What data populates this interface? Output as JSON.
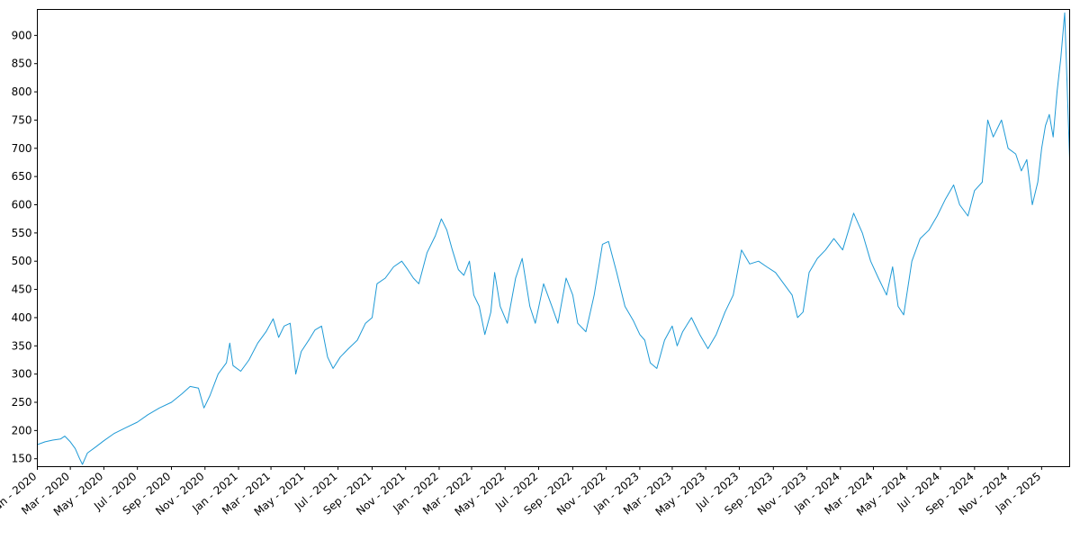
{
  "chart_data": {
    "type": "line",
    "title": "",
    "xlabel": "",
    "ylabel": "",
    "grid": false,
    "line_color": "#1f9ad6",
    "xlim": [
      "2020-01-01",
      "2025-02-21"
    ],
    "ylim": [
      136,
      946
    ],
    "y_ticks": [
      150,
      200,
      250,
      300,
      350,
      400,
      450,
      500,
      550,
      600,
      650,
      700,
      750,
      800,
      850,
      900
    ],
    "x_ticks": [
      {
        "date": "2020-01-01",
        "label": "Jan - 2020"
      },
      {
        "date": "2020-03-01",
        "label": "Mar - 2020"
      },
      {
        "date": "2020-05-01",
        "label": "May - 2020"
      },
      {
        "date": "2020-07-01",
        "label": "Jul - 2020"
      },
      {
        "date": "2020-09-01",
        "label": "Sep - 2020"
      },
      {
        "date": "2020-11-01",
        "label": "Nov - 2020"
      },
      {
        "date": "2021-01-01",
        "label": "Jan - 2021"
      },
      {
        "date": "2021-03-01",
        "label": "Mar - 2021"
      },
      {
        "date": "2021-05-01",
        "label": "May - 2021"
      },
      {
        "date": "2021-07-01",
        "label": "Jul - 2021"
      },
      {
        "date": "2021-09-01",
        "label": "Sep - 2021"
      },
      {
        "date": "2021-11-01",
        "label": "Nov - 2021"
      },
      {
        "date": "2022-01-01",
        "label": "Jan - 2022"
      },
      {
        "date": "2022-03-01",
        "label": "Mar - 2022"
      },
      {
        "date": "2022-05-01",
        "label": "May - 2022"
      },
      {
        "date": "2022-07-01",
        "label": "Jul - 2022"
      },
      {
        "date": "2022-09-01",
        "label": "Sep - 2022"
      },
      {
        "date": "2022-11-01",
        "label": "Nov - 2022"
      },
      {
        "date": "2023-01-01",
        "label": "Jan - 2023"
      },
      {
        "date": "2023-03-01",
        "label": "Mar - 2023"
      },
      {
        "date": "2023-05-01",
        "label": "May - 2023"
      },
      {
        "date": "2023-07-01",
        "label": "Jul - 2023"
      },
      {
        "date": "2023-09-01",
        "label": "Sep - 2023"
      },
      {
        "date": "2023-11-01",
        "label": "Nov - 2023"
      },
      {
        "date": "2024-01-01",
        "label": "Jan - 2024"
      },
      {
        "date": "2024-03-01",
        "label": "Mar - 2024"
      },
      {
        "date": "2024-05-01",
        "label": "May - 2024"
      },
      {
        "date": "2024-07-01",
        "label": "Jul - 2024"
      },
      {
        "date": "2024-09-01",
        "label": "Sep - 2024"
      },
      {
        "date": "2024-11-01",
        "label": "Nov - 2024"
      },
      {
        "date": "2025-01-01",
        "label": "Jan - 2025"
      }
    ],
    "series": [
      {
        "points": [
          [
            "2020-01-01",
            175
          ],
          [
            "2020-01-15",
            180
          ],
          [
            "2020-01-29",
            183
          ],
          [
            "2020-02-12",
            185
          ],
          [
            "2020-02-20",
            190
          ],
          [
            "2020-03-01",
            180
          ],
          [
            "2020-03-10",
            168
          ],
          [
            "2020-03-18",
            150
          ],
          [
            "2020-03-23",
            140
          ],
          [
            "2020-04-01",
            160
          ],
          [
            "2020-04-15",
            170
          ],
          [
            "2020-05-01",
            182
          ],
          [
            "2020-05-20",
            195
          ],
          [
            "2020-06-10",
            205
          ],
          [
            "2020-07-01",
            215
          ],
          [
            "2020-07-20",
            228
          ],
          [
            "2020-08-10",
            240
          ],
          [
            "2020-09-01",
            250
          ],
          [
            "2020-09-20",
            265
          ],
          [
            "2020-10-05",
            278
          ],
          [
            "2020-10-20",
            275
          ],
          [
            "2020-10-30",
            240
          ],
          [
            "2020-11-10",
            262
          ],
          [
            "2020-11-25",
            300
          ],
          [
            "2020-12-10",
            320
          ],
          [
            "2020-12-16",
            355
          ],
          [
            "2020-12-22",
            315
          ],
          [
            "2021-01-05",
            305
          ],
          [
            "2021-01-20",
            325
          ],
          [
            "2021-02-05",
            355
          ],
          [
            "2021-02-20",
            375
          ],
          [
            "2021-03-05",
            398
          ],
          [
            "2021-03-15",
            365
          ],
          [
            "2021-03-25",
            385
          ],
          [
            "2021-04-05",
            390
          ],
          [
            "2021-04-12",
            330
          ],
          [
            "2021-04-15",
            300
          ],
          [
            "2021-04-25",
            340
          ],
          [
            "2021-05-10",
            362
          ],
          [
            "2021-05-20",
            378
          ],
          [
            "2021-06-01",
            385
          ],
          [
            "2021-06-12",
            330
          ],
          [
            "2021-06-22",
            310
          ],
          [
            "2021-07-05",
            330
          ],
          [
            "2021-07-20",
            345
          ],
          [
            "2021-08-05",
            360
          ],
          [
            "2021-08-20",
            390
          ],
          [
            "2021-09-01",
            400
          ],
          [
            "2021-09-10",
            460
          ],
          [
            "2021-09-25",
            470
          ],
          [
            "2021-10-10",
            490
          ],
          [
            "2021-10-25",
            500
          ],
          [
            "2021-11-05",
            485
          ],
          [
            "2021-11-15",
            470
          ],
          [
            "2021-11-25",
            460
          ],
          [
            "2021-12-10",
            515
          ],
          [
            "2021-12-25",
            545
          ],
          [
            "2022-01-05",
            575
          ],
          [
            "2022-01-15",
            555
          ],
          [
            "2022-01-25",
            520
          ],
          [
            "2022-02-05",
            485
          ],
          [
            "2022-02-15",
            475
          ],
          [
            "2022-02-25",
            500
          ],
          [
            "2022-03-05",
            440
          ],
          [
            "2022-03-15",
            420
          ],
          [
            "2022-03-25",
            370
          ],
          [
            "2022-04-05",
            410
          ],
          [
            "2022-04-12",
            480
          ],
          [
            "2022-04-22",
            420
          ],
          [
            "2022-05-05",
            390
          ],
          [
            "2022-05-20",
            470
          ],
          [
            "2022-06-01",
            505
          ],
          [
            "2022-06-15",
            420
          ],
          [
            "2022-06-25",
            390
          ],
          [
            "2022-07-10",
            460
          ],
          [
            "2022-07-25",
            420
          ],
          [
            "2022-08-05",
            390
          ],
          [
            "2022-08-20",
            470
          ],
          [
            "2022-09-01",
            440
          ],
          [
            "2022-09-10",
            390
          ],
          [
            "2022-09-25",
            375
          ],
          [
            "2022-10-10",
            440
          ],
          [
            "2022-10-25",
            530
          ],
          [
            "2022-11-05",
            535
          ],
          [
            "2022-11-20",
            480
          ],
          [
            "2022-12-05",
            420
          ],
          [
            "2022-12-20",
            395
          ],
          [
            "2023-01-01",
            370
          ],
          [
            "2023-01-10",
            360
          ],
          [
            "2023-01-20",
            320
          ],
          [
            "2023-02-01",
            310
          ],
          [
            "2023-02-15",
            360
          ],
          [
            "2023-03-01",
            385
          ],
          [
            "2023-03-10",
            350
          ],
          [
            "2023-03-20",
            375
          ],
          [
            "2023-04-05",
            400
          ],
          [
            "2023-04-20",
            370
          ],
          [
            "2023-05-05",
            345
          ],
          [
            "2023-05-20",
            370
          ],
          [
            "2023-06-05",
            410
          ],
          [
            "2023-06-20",
            440
          ],
          [
            "2023-07-05",
            520
          ],
          [
            "2023-07-20",
            495
          ],
          [
            "2023-08-05",
            500
          ],
          [
            "2023-08-20",
            490
          ],
          [
            "2023-09-05",
            480
          ],
          [
            "2023-09-20",
            460
          ],
          [
            "2023-10-05",
            440
          ],
          [
            "2023-10-15",
            400
          ],
          [
            "2023-10-25",
            410
          ],
          [
            "2023-11-05",
            480
          ],
          [
            "2023-11-20",
            505
          ],
          [
            "2023-12-05",
            520
          ],
          [
            "2023-12-20",
            540
          ],
          [
            "2024-01-05",
            520
          ],
          [
            "2024-01-25",
            585
          ],
          [
            "2024-02-10",
            550
          ],
          [
            "2024-02-25",
            500
          ],
          [
            "2024-03-10",
            470
          ],
          [
            "2024-03-25",
            440
          ],
          [
            "2024-04-05",
            490
          ],
          [
            "2024-04-15",
            420
          ],
          [
            "2024-04-25",
            405
          ],
          [
            "2024-05-10",
            500
          ],
          [
            "2024-05-25",
            540
          ],
          [
            "2024-06-10",
            555
          ],
          [
            "2024-06-25",
            580
          ],
          [
            "2024-07-10",
            610
          ],
          [
            "2024-07-25",
            635
          ],
          [
            "2024-08-05",
            600
          ],
          [
            "2024-08-20",
            580
          ],
          [
            "2024-09-01",
            625
          ],
          [
            "2024-09-15",
            640
          ],
          [
            "2024-09-25",
            750
          ],
          [
            "2024-10-05",
            720
          ],
          [
            "2024-10-20",
            750
          ],
          [
            "2024-11-01",
            700
          ],
          [
            "2024-11-15",
            690
          ],
          [
            "2024-11-25",
            660
          ],
          [
            "2024-12-05",
            680
          ],
          [
            "2024-12-15",
            600
          ],
          [
            "2024-12-25",
            640
          ],
          [
            "2025-01-01",
            700
          ],
          [
            "2025-01-08",
            740
          ],
          [
            "2025-01-15",
            760
          ],
          [
            "2025-01-22",
            720
          ],
          [
            "2025-01-29",
            800
          ],
          [
            "2025-02-05",
            860
          ],
          [
            "2025-02-12",
            940
          ],
          [
            "2025-02-21",
            680
          ]
        ]
      }
    ]
  }
}
